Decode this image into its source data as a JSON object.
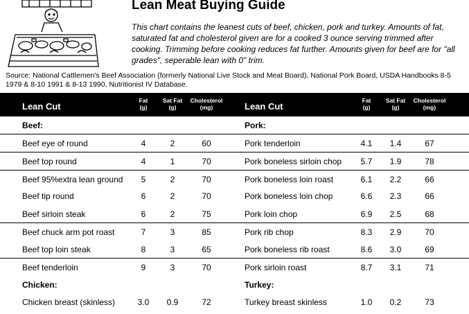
{
  "title": "Lean Meat Buying Guide",
  "intro": "This chart contains the leanest cuts of beef, chicken, pork and turkey. Amounts of fat, saturated fat and cholesterol given are for a cooked 3 ounce serving trimmed after cooking. Trimming before cooking reduces fat further. Amounts given for beef are for \"all grades\", seperable lean with 0\" trim.",
  "source": "Source: National Cattlemen's Beef Association (formerly National Live Stock and Meat Board), National Pork Board, USDA Handbooks 8-5 1979 & 8-10 1991 & 8-13 1990,  Nutritionist IV Database.",
  "illustration_icon": "butcher-counter-illustration",
  "header": {
    "lean_cut": "Lean Cut",
    "fat": "Fat",
    "fat_unit": "(g)",
    "sat_fat": "Sat Fat",
    "sat_fat_unit": "(g)",
    "cholesterol": "Cholesterol",
    "cholesterol_unit": "(mg)"
  },
  "left_column": [
    {
      "label": "Beef:",
      "heading": true
    },
    {
      "cut": "Beef eye of round",
      "fat": "4",
      "sat": "2",
      "chol": "60"
    },
    {
      "cut": "Beef top round",
      "fat": "4",
      "sat": "1",
      "chol": "70"
    },
    {
      "cut": "Beef 95%extra lean ground",
      "fat": "5",
      "sat": "2",
      "chol": "70"
    },
    {
      "cut": "Beef tip round",
      "fat": "6",
      "sat": "2",
      "chol": "70"
    },
    {
      "cut": "Beef sirloin steak",
      "fat": "6",
      "sat": "2",
      "chol": "75"
    },
    {
      "cut": "Beef chuck arm pot roast",
      "fat": "7",
      "sat": "3",
      "chol": "85"
    },
    {
      "cut": "Beef top loin steak",
      "fat": "8",
      "sat": "3",
      "chol": "65"
    },
    {
      "cut": "Beef tenderloin",
      "fat": "9",
      "sat": "3",
      "chol": "70"
    },
    {
      "label": "Chicken:",
      "heading": true
    },
    {
      "cut": "Chicken breast (skinless)",
      "fat": "3.0",
      "sat": "0.9",
      "chol": "72"
    }
  ],
  "right_column": [
    {
      "label": "Pork:",
      "heading": true
    },
    {
      "cut": "Pork tenderloin",
      "fat": "4.1",
      "sat": "1.4",
      "chol": "67"
    },
    {
      "cut": "Pork boneless sirloin chop",
      "fat": "5.7",
      "sat": "1.9",
      "chol": "78"
    },
    {
      "cut": "Pork boneless loin roast",
      "fat": "6.1",
      "sat": "2.2",
      "chol": "66"
    },
    {
      "cut": "Pork boneless loin chop",
      "fat": "6.6",
      "sat": "2.3",
      "chol": "66"
    },
    {
      "cut": "Pork loin chop",
      "fat": "6.9",
      "sat": "2.5",
      "chol": "68"
    },
    {
      "cut": "Pork rib chop",
      "fat": "8.3",
      "sat": "2.9",
      "chol": "70"
    },
    {
      "cut": "Pork boneless rib roast",
      "fat": "8.6",
      "sat": "3.0",
      "chol": "69"
    },
    {
      "cut": "Pork sirloin roast",
      "fat": "8.7",
      "sat": "3.1",
      "chol": "71"
    },
    {
      "label": "Turkey:",
      "heading": true
    },
    {
      "cut": "Turkey breast skinless",
      "fat": "1.0",
      "sat": "0.2",
      "chol": "73"
    }
  ]
}
